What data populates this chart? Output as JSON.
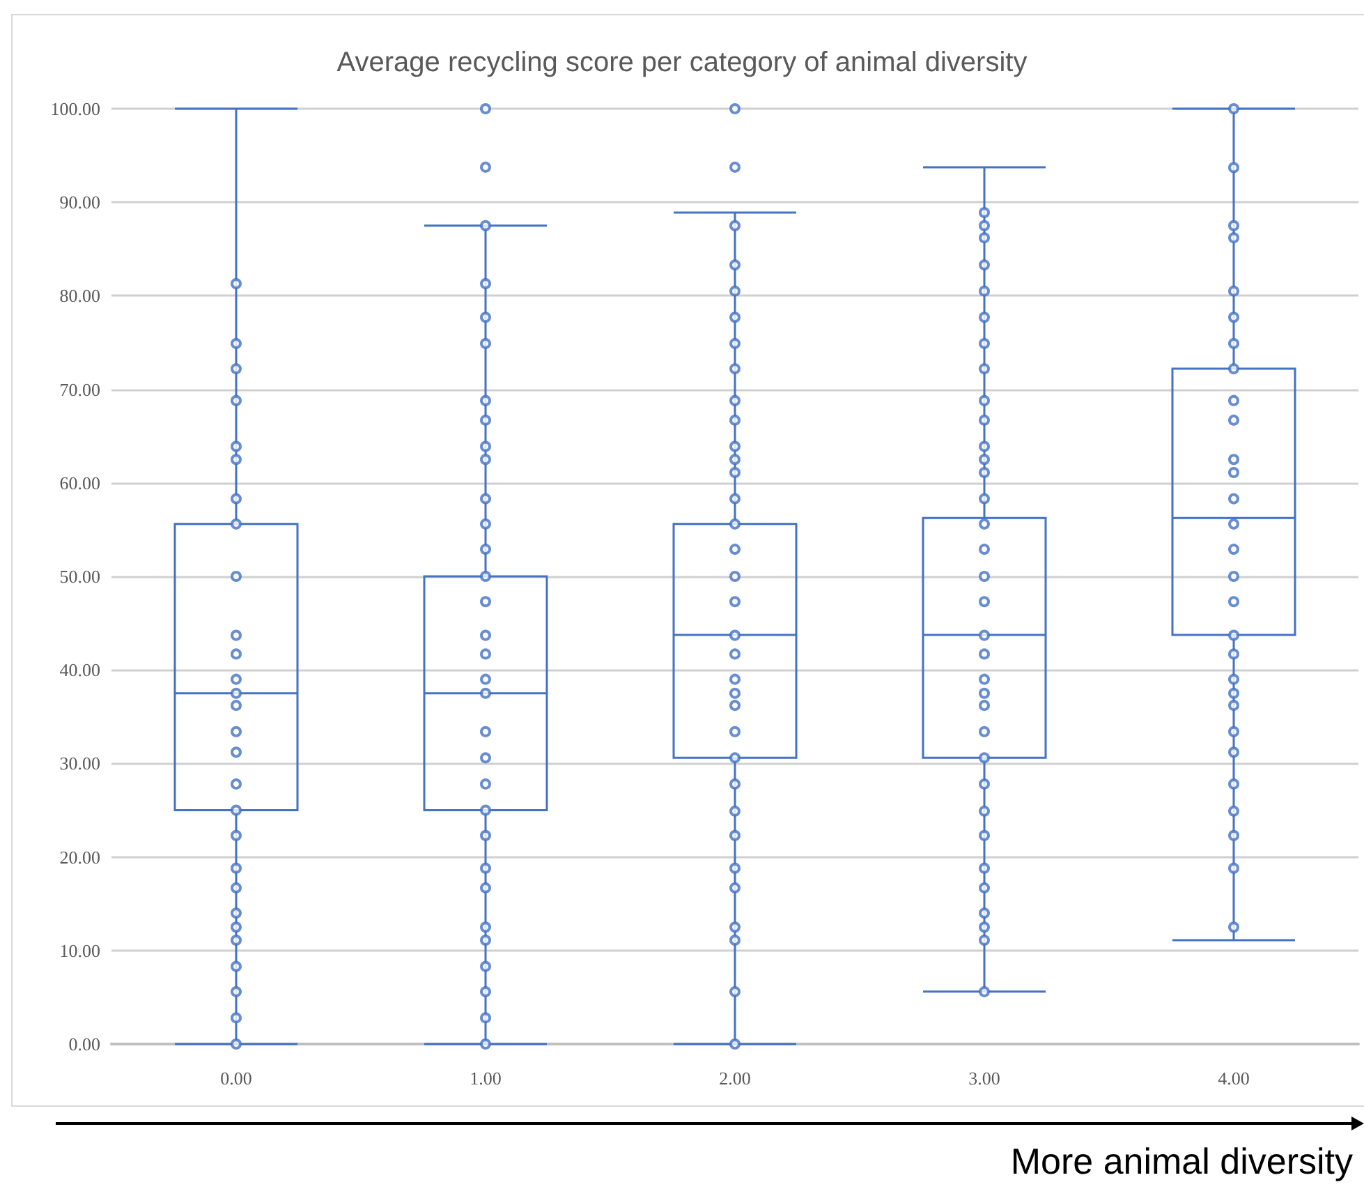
{
  "chart_data": {
    "type": "box",
    "title": "Average recycling score per category of animal diversity",
    "categories": [
      "0.00",
      "1.00",
      "2.00",
      "3.00",
      "4.00"
    ],
    "color": "#4472c4",
    "boxes": [
      {
        "low": 0,
        "q1": 25,
        "median": 37.5,
        "q3": 55.6,
        "high": 100
      },
      {
        "low": 0,
        "q1": 25,
        "median": 37.5,
        "q3": 50,
        "high": 87.5,
        "outliers": [
          93.75,
          100
        ]
      },
      {
        "low": 0,
        "q1": 30.6,
        "median": 43.75,
        "q3": 55.6,
        "high": 88.9,
        "outliers": [
          93.75,
          100
        ]
      },
      {
        "low": 5.6,
        "q1": 30.6,
        "median": 43.75,
        "q3": 56.25,
        "high": 93.75
      },
      {
        "low": 11.1,
        "q1": 43.75,
        "median": 56.25,
        "q3": 72.2,
        "high": 100
      }
    ],
    "series": [
      {
        "type": "scatter",
        "color": "#4472c4",
        "x": [
          "0.00",
          "0.00",
          "0.00",
          "0.00",
          "0.00",
          "0.00",
          "0.00",
          "0.00",
          "0.00",
          "0.00",
          "0.00",
          "0.00",
          "0.00",
          "0.00",
          "0.00",
          "0.00",
          "0.00",
          "0.00",
          "0.00",
          "0.00",
          "0.00",
          "0.00",
          "0.00",
          "0.00",
          "0.00",
          "0.00",
          "0.00",
          "0.00",
          "1.00",
          "1.00",
          "1.00",
          "1.00",
          "1.00",
          "1.00",
          "1.00",
          "1.00",
          "1.00",
          "1.00",
          "1.00",
          "1.00",
          "1.00",
          "1.00",
          "1.00",
          "1.00",
          "1.00",
          "1.00",
          "1.00",
          "1.00",
          "1.00",
          "1.00",
          "1.00",
          "1.00",
          "1.00",
          "1.00",
          "1.00",
          "1.00",
          "1.00",
          "1.00",
          "2.00",
          "2.00",
          "2.00",
          "2.00",
          "2.00",
          "2.00",
          "2.00",
          "2.00",
          "2.00",
          "2.00",
          "2.00",
          "2.00",
          "2.00",
          "2.00",
          "2.00",
          "2.00",
          "2.00",
          "2.00",
          "2.00",
          "2.00",
          "2.00",
          "2.00",
          "2.00",
          "2.00",
          "2.00",
          "2.00",
          "2.00",
          "2.00",
          "2.00",
          "2.00",
          "2.00",
          "2.00",
          "3.00",
          "3.00",
          "3.00",
          "3.00",
          "3.00",
          "3.00",
          "3.00",
          "3.00",
          "3.00",
          "3.00",
          "3.00",
          "3.00",
          "3.00",
          "3.00",
          "3.00",
          "3.00",
          "3.00",
          "3.00",
          "3.00",
          "3.00",
          "3.00",
          "3.00",
          "3.00",
          "3.00",
          "3.00",
          "3.00",
          "3.00",
          "3.00",
          "3.00",
          "3.00",
          "3.00",
          "3.00",
          "3.00",
          "3.00",
          "4.00",
          "4.00",
          "4.00",
          "4.00",
          "4.00",
          "4.00",
          "4.00",
          "4.00",
          "4.00",
          "4.00",
          "4.00",
          "4.00",
          "4.00",
          "4.00",
          "4.00",
          "4.00",
          "4.00",
          "4.00",
          "4.00",
          "4.00",
          "4.00",
          "4.00",
          "4.00",
          "4.00",
          "4.00",
          "4.00",
          "4.00",
          "4.00",
          "4.00"
        ],
        "values": [
          81.3,
          74.9,
          72.2,
          68.8,
          63.9,
          62.5,
          58.3,
          55.6,
          50,
          43.7,
          41.7,
          39,
          37.5,
          36.2,
          33.4,
          31.2,
          27.8,
          25,
          22.3,
          18.8,
          16.7,
          14,
          12.5,
          11.1,
          8.3,
          5.6,
          2.8,
          0,
          87.5,
          81.3,
          77.7,
          74.9,
          68.8,
          66.7,
          63.9,
          62.5,
          58.3,
          55.6,
          52.9,
          50,
          47.3,
          43.7,
          41.7,
          39,
          37.5,
          33.4,
          30.6,
          27.8,
          25,
          22.3,
          18.8,
          16.7,
          12.5,
          11.1,
          8.3,
          5.6,
          2.8,
          0,
          87.5,
          83.3,
          80.5,
          77.7,
          74.9,
          72.2,
          68.8,
          66.7,
          63.9,
          62.5,
          61.1,
          58.3,
          55.6,
          52.9,
          50,
          47.3,
          43.7,
          41.7,
          39,
          37.5,
          36.2,
          33.4,
          30.6,
          27.8,
          24.9,
          22.3,
          18.8,
          16.7,
          12.5,
          11.1,
          5.6,
          0,
          88.9,
          87.5,
          86.2,
          83.3,
          80.5,
          77.7,
          74.9,
          72.2,
          68.8,
          66.7,
          63.9,
          62.5,
          61.1,
          58.3,
          55.6,
          52.9,
          50,
          47.3,
          43.7,
          41.7,
          39,
          37.5,
          36.2,
          33.4,
          30.6,
          27.8,
          24.9,
          22.3,
          18.8,
          16.7,
          14,
          12.5,
          11.1,
          5.6,
          100,
          93.7,
          87.5,
          86.2,
          80.5,
          77.7,
          74.9,
          72.2,
          68.8,
          66.7,
          62.5,
          61.1,
          58.3,
          55.6,
          52.9,
          50,
          47.3,
          43.7,
          41.7,
          39,
          37.5,
          36.2,
          33.4,
          31.2,
          27.8,
          24.9,
          22.3,
          18.8,
          12.5
        ]
      }
    ],
    "ylim": [
      0,
      100
    ],
    "yticks": [
      {
        "value": 0,
        "label": "0.00"
      },
      {
        "value": 10,
        "label": "10.00"
      },
      {
        "value": 20,
        "label": "20.00"
      },
      {
        "value": 30,
        "label": "30.00"
      },
      {
        "value": 40,
        "label": "40.00"
      },
      {
        "value": 50,
        "label": "50.00"
      },
      {
        "value": 60,
        "label": "60.00"
      },
      {
        "value": 70,
        "label": "70.00"
      },
      {
        "value": 80,
        "label": "80.00"
      },
      {
        "value": 90,
        "label": "90.00"
      },
      {
        "value": 100,
        "label": "100.00"
      }
    ],
    "grid": "y",
    "marker": "circle",
    "annotations": [
      "More animal diversity"
    ]
  }
}
